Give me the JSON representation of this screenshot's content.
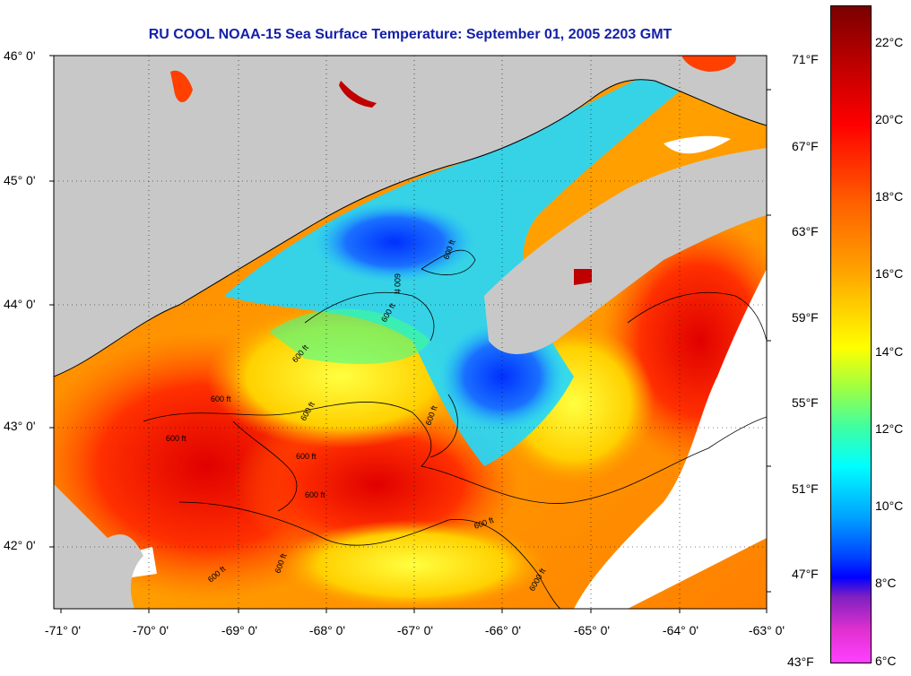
{
  "title": "RU COOL  NOAA-15  Sea Surface Temperature:  September 01, 2005 2203 GMT",
  "lat_labels": [
    "46° 0'",
    "45° 0'",
    "44° 0'",
    "43° 0'",
    "42° 0'"
  ],
  "lon_labels": [
    "-71° 0'",
    "-70° 0'",
    "-69° 0'",
    "-68° 0'",
    "-67° 0'",
    "-66° 0'",
    "-65° 0'",
    "-64° 0'",
    "-63° 0'"
  ],
  "fahrenheit_labels": [
    "71°F",
    "67°F",
    "63°F",
    "59°F",
    "55°F",
    "51°F",
    "47°F",
    "43°F"
  ],
  "celsius_labels": [
    "22°C",
    "20°C",
    "18°C",
    "16°C",
    "14°C",
    "12°C",
    "10°C",
    "8°C",
    "6°C"
  ],
  "contour_labels": [
    "600 ft",
    "600 ft",
    "600 ft",
    "600 ft",
    "600 ft",
    "600 ft",
    "600 ft",
    "600 ft",
    "600 ft",
    "600 ft",
    "600 ft",
    "600 ft",
    "600 ft",
    "6000 ft"
  ],
  "colors": {
    "land": "#c8c8c8",
    "title": "#1420a8",
    "cloud": "#ffffff"
  }
}
